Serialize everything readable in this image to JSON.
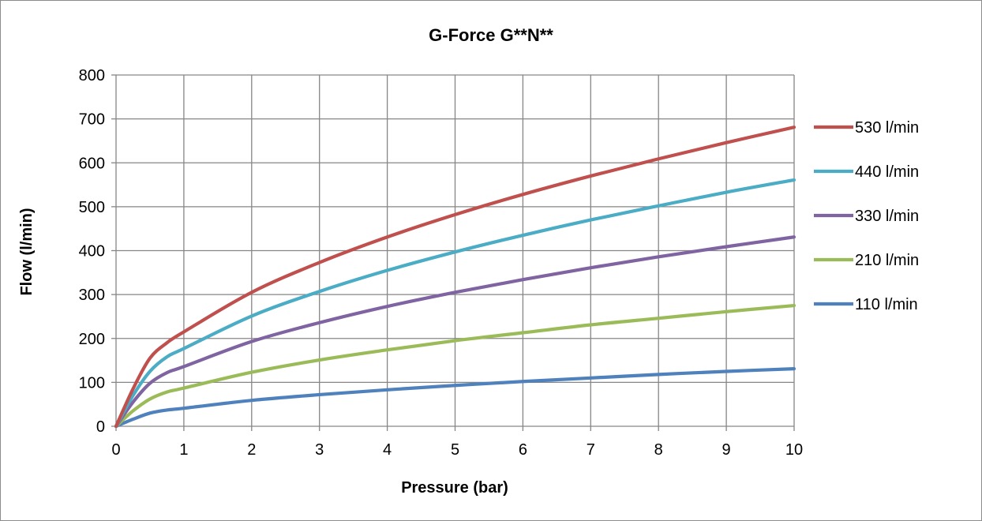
{
  "chart_data": {
    "type": "line",
    "title": "G-Force G**N**",
    "xlabel": "Pressure (bar)",
    "ylabel": "Flow (l/min)",
    "xlim": [
      0,
      10
    ],
    "ylim": [
      0,
      800
    ],
    "xticks": [
      0,
      1,
      2,
      3,
      4,
      5,
      6,
      7,
      8,
      9,
      10
    ],
    "yticks": [
      0,
      100,
      200,
      300,
      400,
      500,
      600,
      700,
      800
    ],
    "grid": true,
    "legend_position": "right",
    "series": [
      {
        "name": "530 l/min",
        "color": "#c0504d",
        "x": [
          0,
          0.25,
          0.5,
          0.75,
          1,
          2,
          3,
          4,
          5,
          6,
          7,
          8,
          9,
          10
        ],
        "y": [
          0,
          85,
          155,
          190,
          215,
          305,
          373,
          431,
          482,
          528,
          570,
          609,
          646,
          681
        ]
      },
      {
        "name": "440 l/min",
        "color": "#4bacc6",
        "x": [
          0,
          0.25,
          0.5,
          0.75,
          1,
          2,
          3,
          4,
          5,
          6,
          7,
          8,
          9,
          10
        ],
        "y": [
          0,
          70,
          125,
          158,
          177,
          251,
          307,
          355,
          397,
          435,
          470,
          502,
          533,
          561
        ]
      },
      {
        "name": "330 l/min",
        "color": "#8064a2",
        "x": [
          0,
          0.25,
          0.5,
          0.75,
          1,
          2,
          3,
          4,
          5,
          6,
          7,
          8,
          9,
          10
        ],
        "y": [
          0,
          55,
          98,
          122,
          136,
          193,
          236,
          273,
          305,
          334,
          361,
          386,
          409,
          431
        ]
      },
      {
        "name": "210 l/min",
        "color": "#9bbb59",
        "x": [
          0,
          0.25,
          0.5,
          0.75,
          1,
          2,
          3,
          4,
          5,
          6,
          7,
          8,
          9,
          10
        ],
        "y": [
          0,
          35,
          62,
          78,
          87,
          123,
          151,
          174,
          195,
          213,
          231,
          246,
          261,
          275
        ]
      },
      {
        "name": "110 l/min",
        "color": "#4f81bd",
        "x": [
          0,
          0.25,
          0.5,
          0.75,
          1,
          2,
          3,
          4,
          5,
          6,
          7,
          8,
          9,
          10
        ],
        "y": [
          0,
          16,
          30,
          37,
          41,
          59,
          72,
          83,
          93,
          102,
          110,
          118,
          125,
          131
        ]
      }
    ]
  }
}
